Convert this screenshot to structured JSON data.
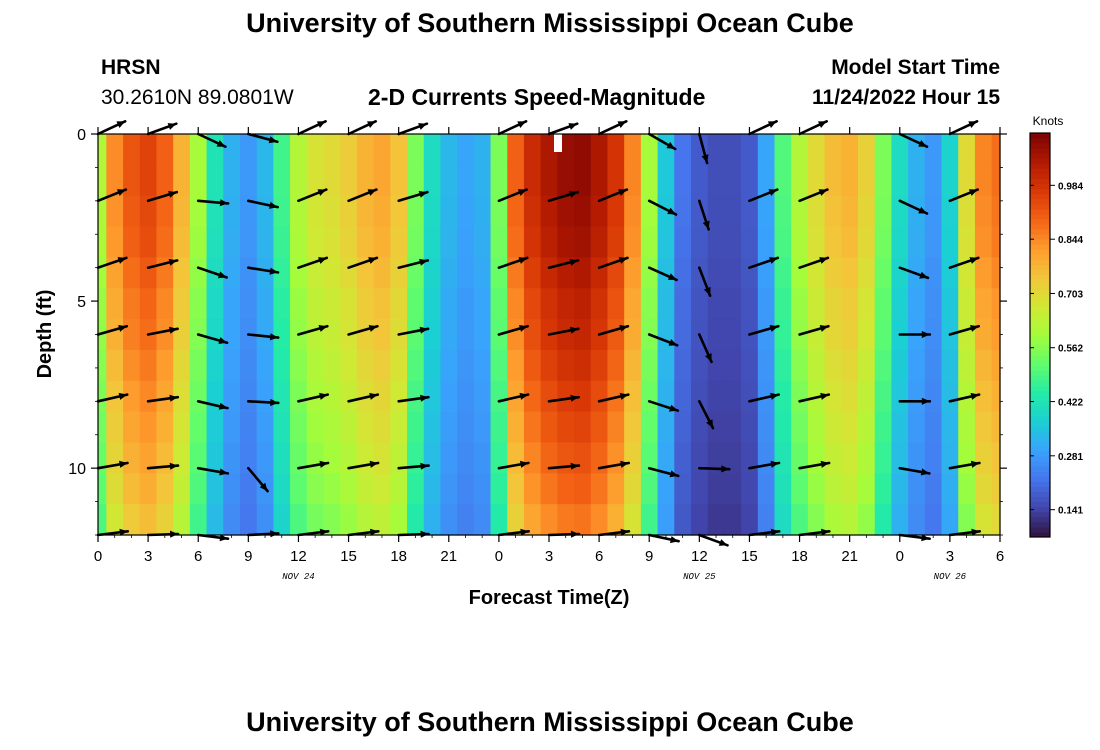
{
  "header": {
    "title": "University of Southern Mississippi Ocean Cube",
    "station": "HRSN",
    "coordinates": "30.2610N  89.0801W",
    "subtitle": "2-D Currents Speed-Magnitude",
    "run_label": "Model Start Time",
    "run_time": "11/24/2022 Hour 15"
  },
  "footer": {
    "title": "University of Southern Mississippi Ocean Cube"
  },
  "chart_data": {
    "type": "heatmap",
    "title": "2-D Currents Speed-Magnitude",
    "xlabel": "Forecast Time(Z)",
    "ylabel": "Depth (ft)",
    "colorbar_label": "Knots",
    "x_tick_labels": [
      "0",
      "3",
      "6",
      "9",
      "12",
      "15",
      "18",
      "21",
      "0",
      "3",
      "6",
      "9",
      "12",
      "15",
      "18",
      "21",
      "0",
      "3",
      "6"
    ],
    "date_labels": [
      {
        "label": "NOV 24",
        "at_hour": 12
      },
      {
        "label": "NOV 25",
        "at_hour": 12
      },
      {
        "label": "NOV 26",
        "at_hour": 3
      }
    ],
    "y_ticks": [
      0,
      5,
      10
    ],
    "ylim": [
      0,
      12
    ],
    "y_inverted": true,
    "colorbar_ticks": [
      "0.141",
      "0.281",
      "0.422",
      "0.562",
      "0.703",
      "0.844",
      "0.984"
    ],
    "colorbar_range": [
      0.07,
      1.12
    ],
    "colormap": [
      "#30123b",
      "#4145ab",
      "#4675ed",
      "#39a2fc",
      "#1bcfd4",
      "#24eca6",
      "#61fc6c",
      "#a4fc3b",
      "#d1e834",
      "#f3c63a",
      "#fe9b2d",
      "#f36315",
      "#d93806",
      "#b11901",
      "#7a0403"
    ],
    "time_hours": [
      0,
      1,
      2,
      3,
      4,
      5,
      6,
      7,
      8,
      9,
      10,
      11,
      12,
      13,
      14,
      15,
      16,
      17,
      18,
      19,
      20,
      21,
      22,
      23,
      24,
      25,
      26,
      27,
      28,
      29,
      30,
      31,
      32,
      33,
      34,
      35,
      36,
      37,
      38,
      39,
      40,
      41,
      42,
      43,
      44,
      45,
      46,
      47,
      48,
      49,
      50,
      51,
      52,
      53,
      54
    ],
    "surface_speed_knots": [
      0.62,
      0.84,
      0.92,
      0.95,
      0.9,
      0.78,
      0.6,
      0.42,
      0.32,
      0.28,
      0.33,
      0.48,
      0.62,
      0.68,
      0.7,
      0.73,
      0.78,
      0.8,
      0.75,
      0.55,
      0.4,
      0.33,
      0.3,
      0.32,
      0.55,
      0.9,
      1.0,
      1.05,
      1.08,
      1.09,
      1.05,
      0.98,
      0.85,
      0.6,
      0.36,
      0.22,
      0.18,
      0.16,
      0.16,
      0.18,
      0.3,
      0.5,
      0.62,
      0.7,
      0.76,
      0.78,
      0.72,
      0.55,
      0.4,
      0.32,
      0.28,
      0.38,
      0.7,
      0.85,
      0.88
    ],
    "depth_decay": [
      1.0,
      1.0,
      0.99,
      0.98,
      0.96,
      0.94,
      0.93,
      0.91,
      0.89,
      0.87,
      0.85,
      0.83,
      0.8
    ],
    "vectors": {
      "hours": [
        0,
        3,
        6,
        9,
        12,
        15,
        18,
        24,
        27,
        30,
        33,
        36,
        39,
        42,
        48,
        51
      ],
      "depths_ft": [
        0,
        2,
        4,
        6,
        8,
        10,
        12
      ],
      "directions_deg": [
        25,
        20,
        -25,
        -15,
        25,
        25,
        20,
        25,
        20,
        25,
        -30,
        -75,
        25,
        25,
        -25,
        25
      ],
      "depth_direction_shift_deg": 3,
      "near_surface_direction_overrides": [
        {
          "hour": 6,
          "depth_ft": 2,
          "direction_deg": -5
        },
        {
          "hour": 36,
          "depth_ft": 12,
          "direction_deg": -20
        },
        {
          "hour": 36,
          "depth_ft": 10,
          "direction_deg": -2
        },
        {
          "hour": 48,
          "depth_ft": 2,
          "direction_deg": -25
        },
        {
          "hour": 48,
          "depth_ft": 4,
          "direction_deg": -20
        },
        {
          "hour": 48,
          "depth_ft": 6,
          "direction_deg": 0
        },
        {
          "hour": 48,
          "depth_ft": 8,
          "direction_deg": 0
        },
        {
          "hour": 9,
          "depth_ft": 10,
          "direction_deg": -50
        }
      ]
    }
  }
}
